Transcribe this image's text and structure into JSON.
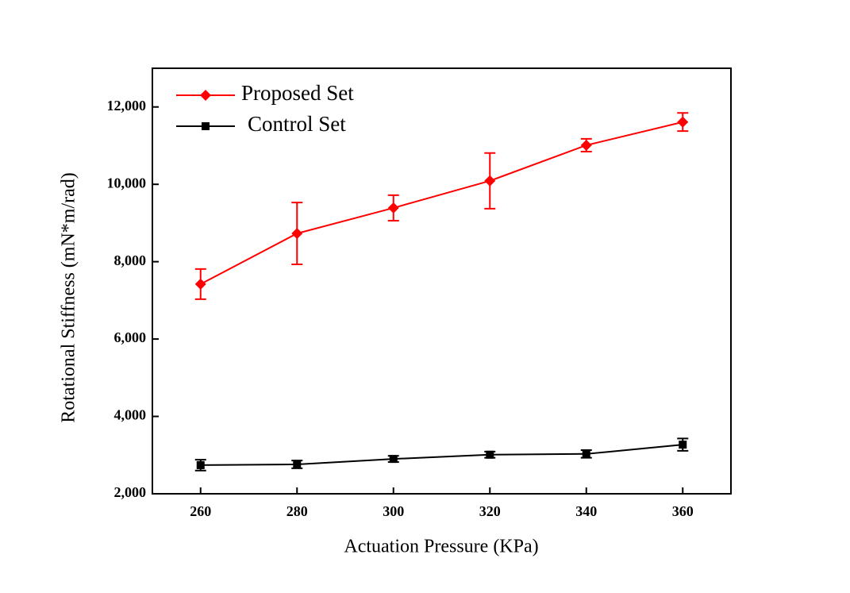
{
  "chart_data": {
    "type": "line",
    "x_label": "Actuation Pressure (KPa)",
    "y_label": "Rotational Stiffness (mN*m/rad)",
    "x": [
      260,
      280,
      300,
      320,
      340,
      360
    ],
    "series": [
      {
        "name": "Proposed Set",
        "color": "#ff0000",
        "marker": "diamond",
        "values": [
          7420,
          8730,
          9390,
          10090,
          11010,
          11610
        ],
        "errors": [
          390,
          800,
          330,
          720,
          165,
          235
        ]
      },
      {
        "name": "Control Set",
        "color": "#000000",
        "marker": "square",
        "values": [
          2740,
          2760,
          2900,
          3010,
          3030,
          3270
        ],
        "errors": [
          140,
          100,
          80,
          80,
          100,
          160
        ]
      }
    ],
    "xlim": [
      250,
      370
    ],
    "xticks": [
      260,
      280,
      300,
      320,
      340,
      360
    ],
    "ylim": [
      2000,
      13000
    ],
    "yticks": [
      {
        "value": 2000,
        "label": "2,000"
      },
      {
        "value": 4000,
        "label": "4,000"
      },
      {
        "value": 6000,
        "label": "6,000"
      },
      {
        "value": 8000,
        "label": "8,000"
      },
      {
        "value": 10000,
        "label": "10,000"
      },
      {
        "value": 12000,
        "label": "12,000"
      }
    ],
    "grid": false,
    "legend": "top-left"
  }
}
